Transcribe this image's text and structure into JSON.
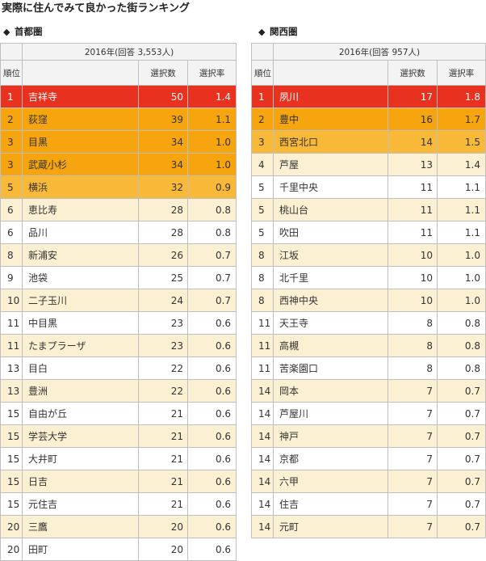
{
  "page_title": "実際に住んでみて良かった街ランキング",
  "diamond": "◆",
  "colors": {
    "top": "#e8321f",
    "orange_dark": "#f6a50e",
    "orange_light": "#f9b938",
    "cream": "#fcf0d3",
    "white": "#ffffff"
  },
  "headers": {
    "rank": "順位",
    "votes": "選択数",
    "rate": "選択率"
  },
  "tokyo": {
    "heading": "首都圏",
    "survey": "2016年(回答 3,553人)",
    "rows": [
      {
        "rank": "1",
        "town": "吉祥寺",
        "votes": "50",
        "rate": "1.4",
        "tier": 1
      },
      {
        "rank": "2",
        "town": "荻窪",
        "votes": "39",
        "rate": "1.1",
        "tier": 2
      },
      {
        "rank": "3",
        "town": "目黒",
        "votes": "34",
        "rate": "1.0",
        "tier": 2
      },
      {
        "rank": "3",
        "town": "武蔵小杉",
        "votes": "34",
        "rate": "1.0",
        "tier": 2
      },
      {
        "rank": "5",
        "town": "横浜",
        "votes": "32",
        "rate": "0.9",
        "tier": 3
      },
      {
        "rank": "6",
        "town": "恵比寿",
        "votes": "28",
        "rate": "0.8",
        "tier": 4
      },
      {
        "rank": "6",
        "town": "品川",
        "votes": "28",
        "rate": "0.8",
        "tier": 5
      },
      {
        "rank": "8",
        "town": "新浦安",
        "votes": "26",
        "rate": "0.7",
        "tier": 4
      },
      {
        "rank": "9",
        "town": "池袋",
        "votes": "25",
        "rate": "0.7",
        "tier": 5
      },
      {
        "rank": "10",
        "town": "二子玉川",
        "votes": "24",
        "rate": "0.7",
        "tier": 4
      },
      {
        "rank": "11",
        "town": "中目黒",
        "votes": "23",
        "rate": "0.6",
        "tier": 5
      },
      {
        "rank": "11",
        "town": "たまプラーザ",
        "votes": "23",
        "rate": "0.6",
        "tier": 4
      },
      {
        "rank": "13",
        "town": "目白",
        "votes": "22",
        "rate": "0.6",
        "tier": 5
      },
      {
        "rank": "13",
        "town": "豊洲",
        "votes": "22",
        "rate": "0.6",
        "tier": 4
      },
      {
        "rank": "15",
        "town": "自由が丘",
        "votes": "21",
        "rate": "0.6",
        "tier": 5
      },
      {
        "rank": "15",
        "town": "学芸大学",
        "votes": "21",
        "rate": "0.6",
        "tier": 4
      },
      {
        "rank": "15",
        "town": "大井町",
        "votes": "21",
        "rate": "0.6",
        "tier": 5
      },
      {
        "rank": "15",
        "town": "日吉",
        "votes": "21",
        "rate": "0.6",
        "tier": 4
      },
      {
        "rank": "15",
        "town": "元住吉",
        "votes": "21",
        "rate": "0.6",
        "tier": 5
      },
      {
        "rank": "20",
        "town": "三鷹",
        "votes": "20",
        "rate": "0.6",
        "tier": 4
      },
      {
        "rank": "20",
        "town": "田町",
        "votes": "20",
        "rate": "0.6",
        "tier": 5
      }
    ]
  },
  "kansai": {
    "heading": "関西圏",
    "survey": "2016年(回答 957人)",
    "rows": [
      {
        "rank": "1",
        "town": "夙川",
        "votes": "17",
        "rate": "1.8",
        "tier": 1
      },
      {
        "rank": "2",
        "town": "豊中",
        "votes": "16",
        "rate": "1.7",
        "tier": 2
      },
      {
        "rank": "3",
        "town": "西宮北口",
        "votes": "14",
        "rate": "1.5",
        "tier": 3
      },
      {
        "rank": "4",
        "town": "芦屋",
        "votes": "13",
        "rate": "1.4",
        "tier": 4
      },
      {
        "rank": "5",
        "town": "千里中央",
        "votes": "11",
        "rate": "1.1",
        "tier": 5
      },
      {
        "rank": "5",
        "town": "桃山台",
        "votes": "11",
        "rate": "1.1",
        "tier": 4
      },
      {
        "rank": "5",
        "town": "吹田",
        "votes": "11",
        "rate": "1.1",
        "tier": 5
      },
      {
        "rank": "8",
        "town": "江坂",
        "votes": "10",
        "rate": "1.0",
        "tier": 4
      },
      {
        "rank": "8",
        "town": "北千里",
        "votes": "10",
        "rate": "1.0",
        "tier": 5
      },
      {
        "rank": "8",
        "town": "西神中央",
        "votes": "10",
        "rate": "1.0",
        "tier": 4
      },
      {
        "rank": "11",
        "town": "天王寺",
        "votes": "8",
        "rate": "0.8",
        "tier": 5
      },
      {
        "rank": "11",
        "town": "高槻",
        "votes": "8",
        "rate": "0.8",
        "tier": 4
      },
      {
        "rank": "11",
        "town": "苦楽園口",
        "votes": "8",
        "rate": "0.8",
        "tier": 5
      },
      {
        "rank": "14",
        "town": "岡本",
        "votes": "7",
        "rate": "0.7",
        "tier": 4
      },
      {
        "rank": "14",
        "town": "芦屋川",
        "votes": "7",
        "rate": "0.7",
        "tier": 5
      },
      {
        "rank": "14",
        "town": "神戸",
        "votes": "7",
        "rate": "0.7",
        "tier": 4
      },
      {
        "rank": "14",
        "town": "京都",
        "votes": "7",
        "rate": "0.7",
        "tier": 5
      },
      {
        "rank": "14",
        "town": "六甲",
        "votes": "7",
        "rate": "0.7",
        "tier": 4
      },
      {
        "rank": "14",
        "town": "住吉",
        "votes": "7",
        "rate": "0.7",
        "tier": 5
      },
      {
        "rank": "14",
        "town": "元町",
        "votes": "7",
        "rate": "0.7",
        "tier": 4
      }
    ]
  }
}
